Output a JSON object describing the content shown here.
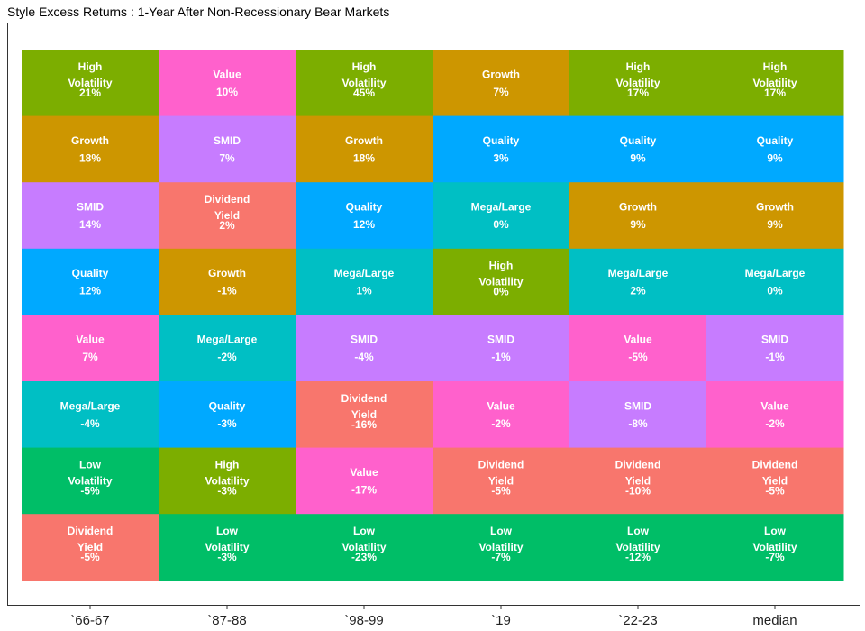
{
  "chart_data": {
    "type": "heatmap",
    "title": "Style Excess Returns : 1-Year After Non-Recessionary Bear Markets",
    "xlabel": "",
    "ylabel": "",
    "categories": [
      "`66-67",
      "`87-88",
      "`98-99",
      "`19",
      "`22-23",
      "median"
    ],
    "columns": [
      {
        "period": "`66-67",
        "cells": [
          {
            "style": "High Volatility",
            "value": "21%"
          },
          {
            "style": "Growth",
            "value": "18%"
          },
          {
            "style": "SMID",
            "value": "14%"
          },
          {
            "style": "Quality",
            "value": "12%"
          },
          {
            "style": "Value",
            "value": "7%"
          },
          {
            "style": "Mega/Large",
            "value": "-4%"
          },
          {
            "style": "Low Volatility",
            "value": "-5%"
          },
          {
            "style": "Dividend Yield",
            "value": "-5%"
          }
        ]
      },
      {
        "period": "`87-88",
        "cells": [
          {
            "style": "Value",
            "value": "10%"
          },
          {
            "style": "SMID",
            "value": "7%"
          },
          {
            "style": "Dividend Yield",
            "value": "2%"
          },
          {
            "style": "Growth",
            "value": "-1%"
          },
          {
            "style": "Mega/Large",
            "value": "-2%"
          },
          {
            "style": "Quality",
            "value": "-3%"
          },
          {
            "style": "High Volatility",
            "value": "-3%"
          },
          {
            "style": "Low Volatility",
            "value": "-3%"
          }
        ]
      },
      {
        "period": "`98-99",
        "cells": [
          {
            "style": "High Volatility",
            "value": "45%"
          },
          {
            "style": "Growth",
            "value": "18%"
          },
          {
            "style": "Quality",
            "value": "12%"
          },
          {
            "style": "Mega/Large",
            "value": "1%"
          },
          {
            "style": "SMID",
            "value": "-4%"
          },
          {
            "style": "Dividend Yield",
            "value": "-16%"
          },
          {
            "style": "Value",
            "value": "-17%"
          },
          {
            "style": "Low Volatility",
            "value": "-23%"
          }
        ]
      },
      {
        "period": "`19",
        "cells": [
          {
            "style": "Growth",
            "value": "7%"
          },
          {
            "style": "Quality",
            "value": "3%"
          },
          {
            "style": "Mega/Large",
            "value": "0%"
          },
          {
            "style": "High Volatility",
            "value": "0%"
          },
          {
            "style": "SMID",
            "value": "-1%"
          },
          {
            "style": "Value",
            "value": "-2%"
          },
          {
            "style": "Dividend Yield",
            "value": "-5%"
          },
          {
            "style": "Low Volatility",
            "value": "-7%"
          }
        ]
      },
      {
        "period": "`22-23",
        "cells": [
          {
            "style": "High Volatility",
            "value": "17%"
          },
          {
            "style": "Quality",
            "value": "9%"
          },
          {
            "style": "Growth",
            "value": "9%"
          },
          {
            "style": "Mega/Large",
            "value": "2%"
          },
          {
            "style": "Value",
            "value": "-5%"
          },
          {
            "style": "SMID",
            "value": "-8%"
          },
          {
            "style": "Dividend Yield",
            "value": "-10%"
          },
          {
            "style": "Low Volatility",
            "value": "-12%"
          }
        ]
      },
      {
        "period": "median",
        "cells": [
          {
            "style": "High Volatility",
            "value": "17%"
          },
          {
            "style": "Quality",
            "value": "9%"
          },
          {
            "style": "Growth",
            "value": "9%"
          },
          {
            "style": "Mega/Large",
            "value": "0%"
          },
          {
            "style": "SMID",
            "value": "-1%"
          },
          {
            "style": "Value",
            "value": "-2%"
          },
          {
            "style": "Dividend Yield",
            "value": "-5%"
          },
          {
            "style": "Low Volatility",
            "value": "-7%"
          }
        ]
      }
    ],
    "style_colors": {
      "High Volatility": "#7cae00",
      "Growth": "#cd9600",
      "SMID": "#c77cff",
      "Quality": "#00a9ff",
      "Value": "#ff61cc",
      "Mega/Large": "#00bfc4",
      "Low Volatility": "#00be67",
      "Dividend Yield": "#f8766d"
    },
    "grid": false,
    "legend": "none"
  }
}
